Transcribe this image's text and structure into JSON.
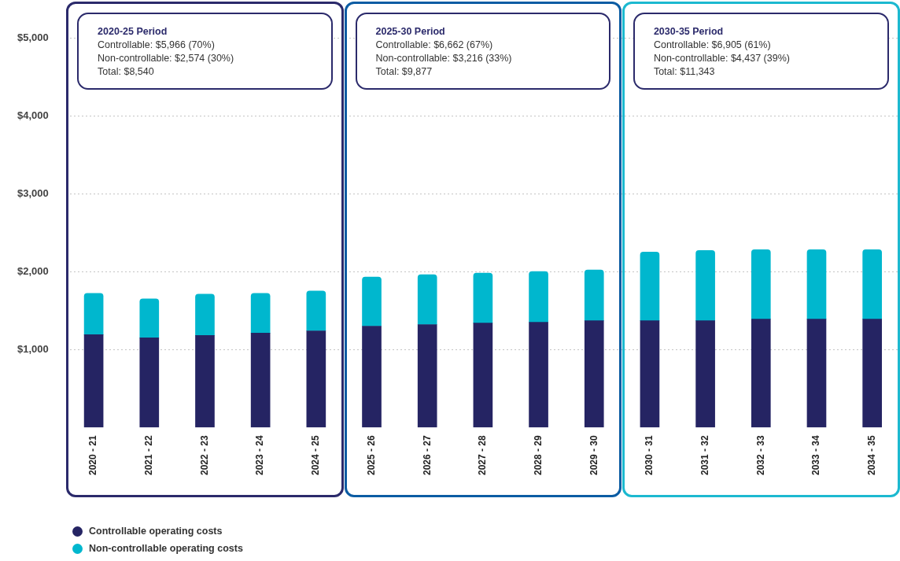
{
  "chart_data": {
    "type": "bar",
    "stacked": true,
    "categories": [
      "2020 - 21",
      "2021 - 22",
      "2022 - 23",
      "2023 - 24",
      "2024 - 25",
      "2025 - 26",
      "2026 - 27",
      "2027 - 28",
      "2028 - 29",
      "2029 - 30",
      "2030 - 31",
      "2031 - 32",
      "2032 - 33",
      "2033 - 34",
      "2034 - 35"
    ],
    "series": [
      {
        "name": "Controllable operating costs",
        "color": "#252463",
        "values": [
          1190,
          1150,
          1180,
          1210,
          1240,
          1300,
          1320,
          1340,
          1350,
          1370,
          1370,
          1370,
          1390,
          1390,
          1390
        ]
      },
      {
        "name": "Non-controllable operating costs",
        "color": "#00b7ce",
        "values": [
          530,
          500,
          530,
          510,
          510,
          630,
          640,
          640,
          650,
          650,
          880,
          900,
          890,
          890,
          890
        ]
      }
    ],
    "ylim": [
      0,
      5000
    ],
    "yticks": [
      {
        "value": 1000,
        "label": "$1,000"
      },
      {
        "value": 2000,
        "label": "$2,000"
      },
      {
        "value": 3000,
        "label": "$3,000"
      },
      {
        "value": 4000,
        "label": "$4,000"
      },
      {
        "value": 5000,
        "label": "$5,000"
      }
    ],
    "grid": "y",
    "legend": "bottom left",
    "annotations": [
      "2020-25 Period",
      "Controllable: $5,966 (70%)",
      "Non-controllable: $2,574 (30%)",
      "Total: $8,540",
      "2025-30 Period",
      "Controllable: $6,662 (67%)",
      "Non-controllable: $3,216 (33%)",
      "Total: $9,877",
      "2030-35 Period",
      "Controllable: $6,905 (61%)",
      "Non-controllable: $4,437 (39%)",
      "Total: $11,343"
    ]
  }
}
